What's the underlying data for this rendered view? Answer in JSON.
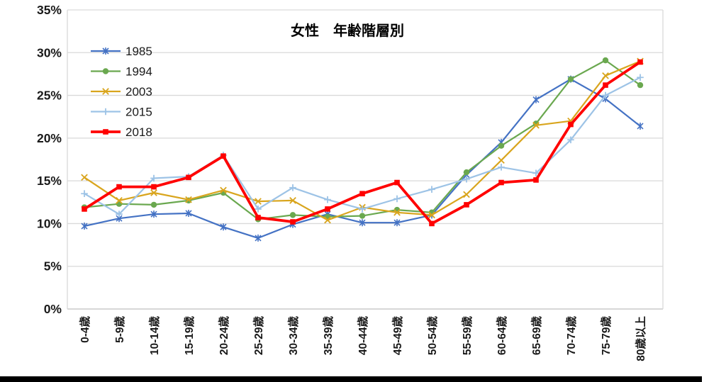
{
  "title": "女性　年齢階層別",
  "legend": {
    "items": [
      "1985",
      "1994",
      "2003",
      "2015",
      "2018"
    ]
  },
  "chart_data": {
    "type": "line",
    "title": "女性　年齢階層別",
    "categories": [
      "0-4歳",
      "5-9歳",
      "10-14歳",
      "15-19歳",
      "20-24歳",
      "25-29歳",
      "30-34歳",
      "35-39歳",
      "40-44歳",
      "45-49歳",
      "50-54歳",
      "55-59歳",
      "60-64歳",
      "65-69歳",
      "70-74歳",
      "75-79歳",
      "80歳以上"
    ],
    "series": [
      {
        "name": "1985",
        "color": "#4472c4",
        "marker": "asterisk",
        "line_width": 2.2,
        "values": [
          9.7,
          10.6,
          11.1,
          11.2,
          9.6,
          8.3,
          9.9,
          11.1,
          10.1,
          10.1,
          11.0,
          15.7,
          19.5,
          24.5,
          26.9,
          24.6,
          21.4
        ]
      },
      {
        "name": "1994",
        "color": "#6aa84f",
        "marker": "circle",
        "line_width": 2.2,
        "values": [
          11.9,
          12.3,
          12.2,
          12.7,
          13.6,
          10.5,
          11.0,
          10.8,
          10.9,
          11.6,
          11.3,
          16.0,
          19.1,
          21.7,
          26.9,
          29.1,
          26.2
        ]
      },
      {
        "name": "2003",
        "color": "#d9a51d",
        "marker": "x",
        "line_width": 2.2,
        "values": [
          15.4,
          12.7,
          13.6,
          12.8,
          13.9,
          12.6,
          12.7,
          10.4,
          11.9,
          11.3,
          11.0,
          13.4,
          17.4,
          21.5,
          22.0,
          27.3,
          29.0
        ]
      },
      {
        "name": "2015",
        "color": "#9dc3e6",
        "marker": "plus",
        "line_width": 2.2,
        "values": [
          13.5,
          11.1,
          15.3,
          15.5,
          18.0,
          11.7,
          14.2,
          12.8,
          11.7,
          12.9,
          14.0,
          15.2,
          16.6,
          15.9,
          19.8,
          25.0,
          27.1
        ]
      },
      {
        "name": "2018",
        "color": "#ff0000",
        "marker": "square",
        "line_width": 3.8,
        "values": [
          11.7,
          14.3,
          14.3,
          15.4,
          17.9,
          10.7,
          10.2,
          11.7,
          13.5,
          14.8,
          10.0,
          12.2,
          14.8,
          15.1,
          21.6,
          26.2,
          28.9
        ]
      }
    ],
    "ylim": [
      0,
      35
    ],
    "ytick_step": 5,
    "yticks": [
      "0%",
      "5%",
      "10%",
      "15%",
      "20%",
      "25%",
      "30%",
      "35%"
    ],
    "grid": true,
    "legend_position": "top-left",
    "xlabel": "",
    "ylabel": ""
  },
  "colors": {
    "grid": "#d9d9d9",
    "axis_line": "#bfbfbf",
    "text": "#1a1a1a",
    "bottom_bar": "#000000"
  }
}
